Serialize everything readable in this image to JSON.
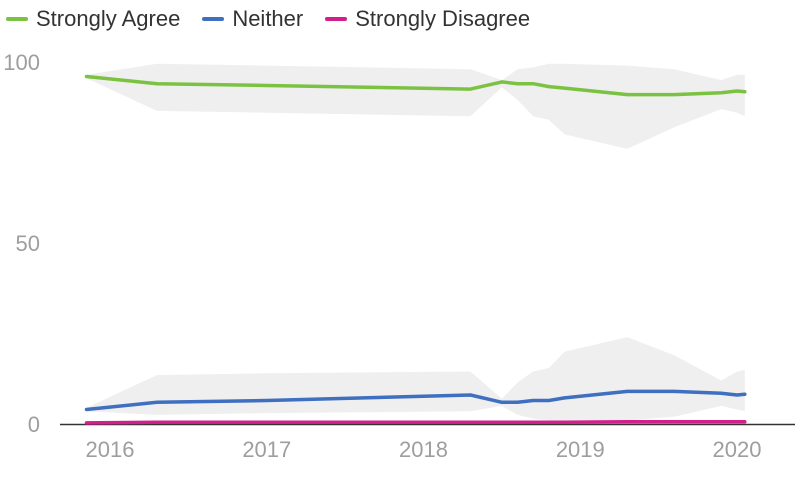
{
  "chart_data": {
    "type": "line",
    "title": "",
    "xlabel": "",
    "ylabel": "",
    "ylim": [
      0,
      100
    ],
    "xlim": [
      2015.85,
      2020.35
    ],
    "grid": false,
    "legend_position": "top-left",
    "x_ticks": [
      {
        "value": 2016,
        "label": "2016"
      },
      {
        "value": 2017,
        "label": "2017"
      },
      {
        "value": 2018,
        "label": "2018"
      },
      {
        "value": 2019,
        "label": "2019"
      },
      {
        "value": 2020,
        "label": "2020"
      }
    ],
    "y_ticks": [
      {
        "value": 0,
        "label": "0"
      },
      {
        "value": 50,
        "label": "50"
      },
      {
        "value": 100,
        "label": "100"
      }
    ],
    "band_color": "#efefef",
    "series": [
      {
        "name": "Strongly Agree",
        "color": "#7cc242",
        "points": [
          [
            2015.85,
            96.0
          ],
          [
            2016.3,
            94.0
          ],
          [
            2017.0,
            93.5
          ],
          [
            2018.3,
            92.5
          ],
          [
            2018.5,
            94.5
          ],
          [
            2018.6,
            94.0
          ],
          [
            2018.7,
            94.0
          ],
          [
            2018.8,
            93.2
          ],
          [
            2018.9,
            92.8
          ],
          [
            2019.3,
            91.0
          ],
          [
            2019.6,
            91.0
          ],
          [
            2019.9,
            91.5
          ],
          [
            2020.0,
            92.0
          ],
          [
            2020.05,
            91.8
          ]
        ],
        "band": [
          [
            2015.85,
            96.5,
            95.5
          ],
          [
            2016.3,
            99.5,
            86.5
          ],
          [
            2017.0,
            99.0,
            86.0
          ],
          [
            2018.3,
            98.0,
            85.0
          ],
          [
            2018.5,
            95.0,
            93.0
          ],
          [
            2018.6,
            98.0,
            89.5
          ],
          [
            2018.7,
            98.5,
            85.0
          ],
          [
            2018.8,
            99.5,
            84.0
          ],
          [
            2018.9,
            99.5,
            80.0
          ],
          [
            2019.3,
            99.0,
            76.0
          ],
          [
            2019.6,
            98.0,
            82.0
          ],
          [
            2019.9,
            95.0,
            87.0
          ],
          [
            2020.0,
            96.5,
            86.0
          ],
          [
            2020.05,
            96.5,
            85.0
          ]
        ]
      },
      {
        "name": "Neither",
        "color": "#3f6fbf",
        "points": [
          [
            2015.85,
            4.0
          ],
          [
            2016.3,
            6.0
          ],
          [
            2017.0,
            6.5
          ],
          [
            2018.3,
            8.0
          ],
          [
            2018.5,
            6.0
          ],
          [
            2018.6,
            6.0
          ],
          [
            2018.7,
            6.5
          ],
          [
            2018.8,
            6.5
          ],
          [
            2018.9,
            7.2
          ],
          [
            2019.3,
            9.0
          ],
          [
            2019.6,
            9.0
          ],
          [
            2019.9,
            8.5
          ],
          [
            2020.0,
            8.0
          ],
          [
            2020.05,
            8.2
          ]
        ],
        "band": [
          [
            2015.85,
            4.5,
            3.5
          ],
          [
            2016.3,
            13.5,
            2.5
          ],
          [
            2017.0,
            14.0,
            3.0
          ],
          [
            2018.3,
            14.5,
            3.5
          ],
          [
            2018.5,
            7.0,
            5.0
          ],
          [
            2018.6,
            11.5,
            2.5
          ],
          [
            2018.7,
            14.5,
            1.5
          ],
          [
            2018.8,
            15.5,
            1.0
          ],
          [
            2018.9,
            20.0,
            1.0
          ],
          [
            2019.3,
            24.0,
            1.0
          ],
          [
            2019.6,
            19.0,
            2.0
          ],
          [
            2019.9,
            12.0,
            5.0
          ],
          [
            2020.0,
            14.5,
            4.0
          ],
          [
            2020.05,
            15.0,
            3.5
          ]
        ]
      },
      {
        "name": "Strongly Disagree",
        "color": "#d21f8c",
        "points": [
          [
            2015.85,
            0.3
          ],
          [
            2016.3,
            0.5
          ],
          [
            2017.0,
            0.5
          ],
          [
            2018.3,
            0.5
          ],
          [
            2018.5,
            0.5
          ],
          [
            2018.6,
            0.5
          ],
          [
            2018.7,
            0.5
          ],
          [
            2018.8,
            0.5
          ],
          [
            2018.9,
            0.5
          ],
          [
            2019.3,
            0.6
          ],
          [
            2019.6,
            0.6
          ],
          [
            2019.9,
            0.6
          ],
          [
            2020.0,
            0.6
          ],
          [
            2020.05,
            0.6
          ]
        ],
        "band": []
      }
    ]
  }
}
